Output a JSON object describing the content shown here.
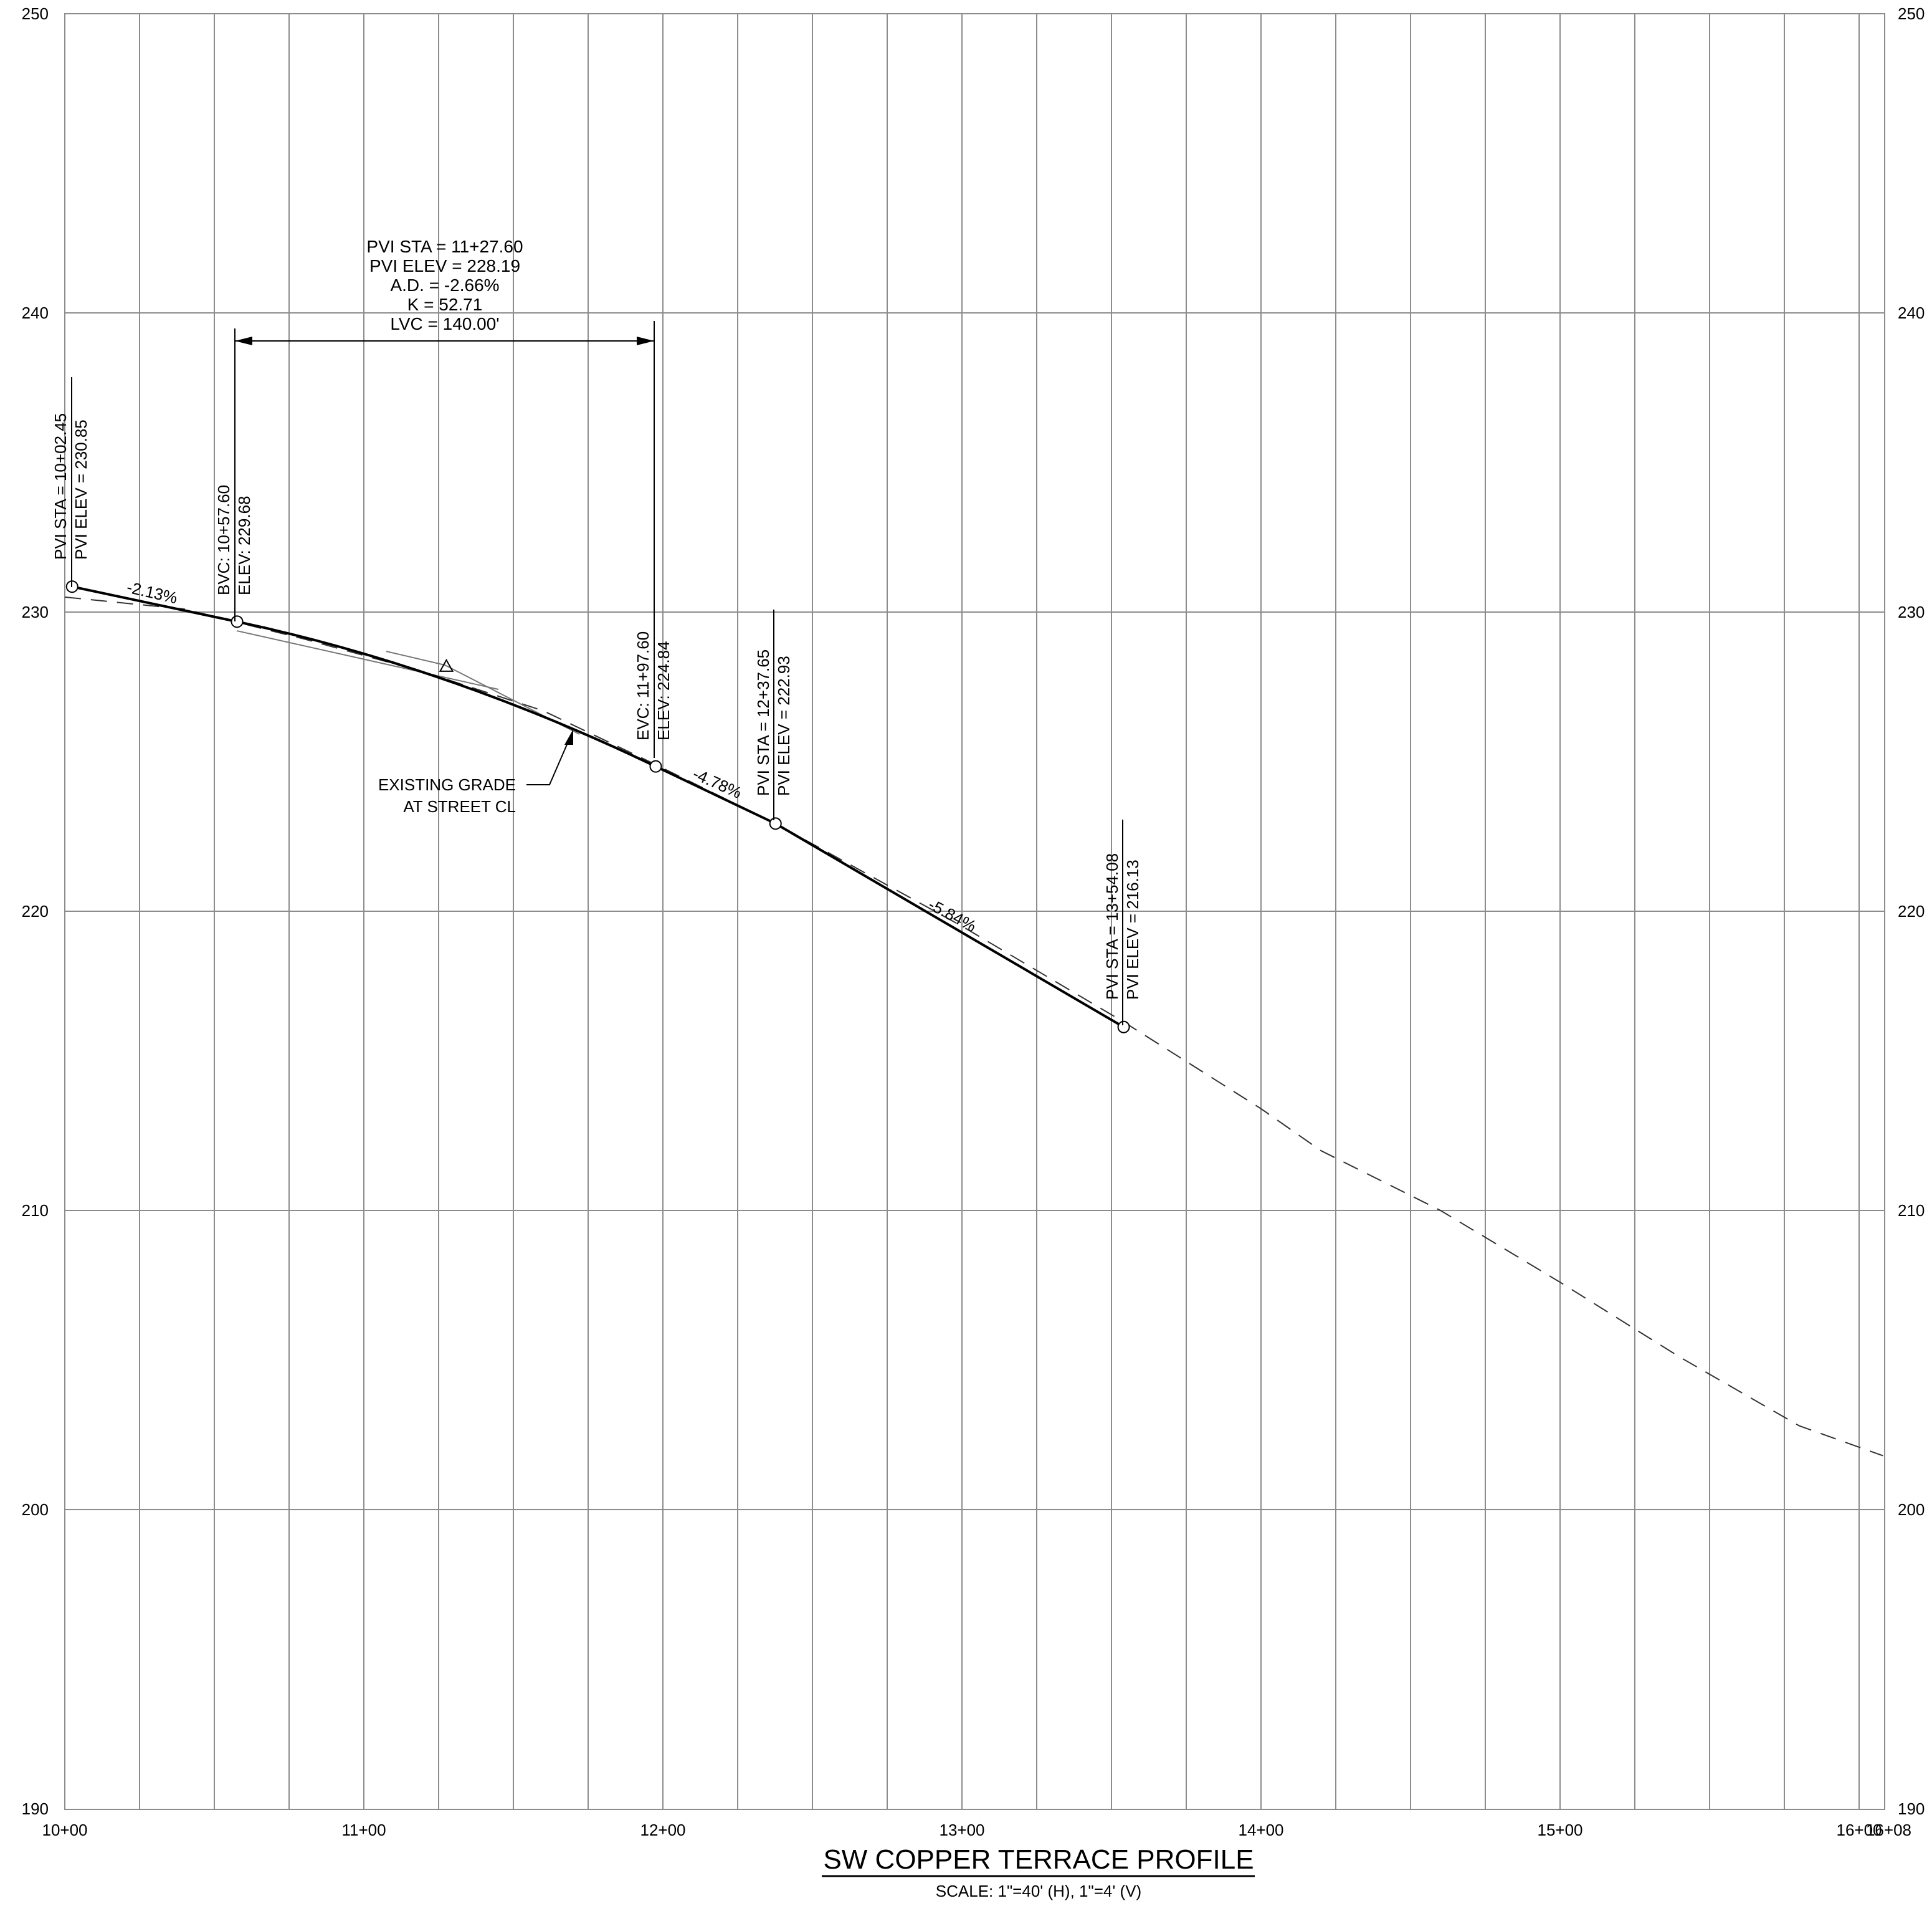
{
  "drawing": {
    "title": "SW COPPER TERRACE PROFILE",
    "scale": "SCALE: 1\"=40' (H), 1\"=4' (V)"
  },
  "axes": {
    "elevation_labels": [
      "190",
      "200",
      "210",
      "220",
      "230",
      "240",
      "250"
    ],
    "station_labels": [
      "10+00",
      "11+00",
      "12+00",
      "13+00",
      "14+00",
      "15+00",
      "16+00"
    ],
    "end_station_label": "16+08"
  },
  "annotations": {
    "pvi1_sta": "PVI STA = 10+02.45",
    "pvi1_elev": "PVI ELEV =  230.85",
    "bvc_sta": "BVC: 10+57.60",
    "bvc_elev": "ELEV: 229.68",
    "curve_pvi_sta": "PVI STA = 11+27.60",
    "curve_pvi_elev": "PVI ELEV = 228.19",
    "curve_ad": "A.D. = -2.66%",
    "curve_k": "K = 52.71",
    "curve_lvc": "LVC = 140.00'",
    "evc_sta": "EVC: 11+97.60",
    "evc_elev": "ELEV: 224.84",
    "pvi3_sta": "PVI STA = 12+37.65",
    "pvi3_elev": "PVI ELEV =  222.93",
    "pvi4_sta": "PVI STA = 13+54.08",
    "pvi4_elev": "PVI ELEV =  216.13",
    "grade1": "-2.13%",
    "grade2": "-4.78%",
    "grade3": "-5.84%",
    "existing_grade_line1": "EXISTING GRADE",
    "existing_grade_line2": "AT STREET CL"
  },
  "profile_data": {
    "station_range": [
      1000,
      1608
    ],
    "elevation_range": [
      190,
      250
    ],
    "design_profile": [
      {
        "sta": 1002.45,
        "elev": 230.85
      },
      {
        "sta": 1057.6,
        "elev": 229.68
      },
      {
        "sta": 1197.6,
        "elev": 224.84
      },
      {
        "sta": 1237.65,
        "elev": 222.93
      },
      {
        "sta": 1354.08,
        "elev": 216.13
      }
    ],
    "vertical_curve": {
      "bvc_sta": 1057.6,
      "pvi_sta": 1127.6,
      "pvi_elev": 228.19,
      "evc_sta": 1197.6
    },
    "existing_grade": [
      {
        "sta": 1000,
        "elev": 230.5
      },
      {
        "sta": 1040,
        "elev": 230.1
      },
      {
        "sta": 1080,
        "elev": 229.1
      },
      {
        "sta": 1120,
        "elev": 228.0
      },
      {
        "sta": 1160,
        "elev": 226.7
      },
      {
        "sta": 1197.6,
        "elev": 224.9
      },
      {
        "sta": 1237.65,
        "elev": 222.93
      },
      {
        "sta": 1300,
        "elev": 219.5
      },
      {
        "sta": 1354.08,
        "elev": 216.3
      },
      {
        "sta": 1400,
        "elev": 213.4
      },
      {
        "sta": 1420,
        "elev": 212.0
      },
      {
        "sta": 1460,
        "elev": 210.0
      },
      {
        "sta": 1500,
        "elev": 207.6
      },
      {
        "sta": 1540,
        "elev": 205.1
      },
      {
        "sta": 1580,
        "elev": 202.8
      },
      {
        "sta": 1608,
        "elev": 201.8
      }
    ]
  }
}
